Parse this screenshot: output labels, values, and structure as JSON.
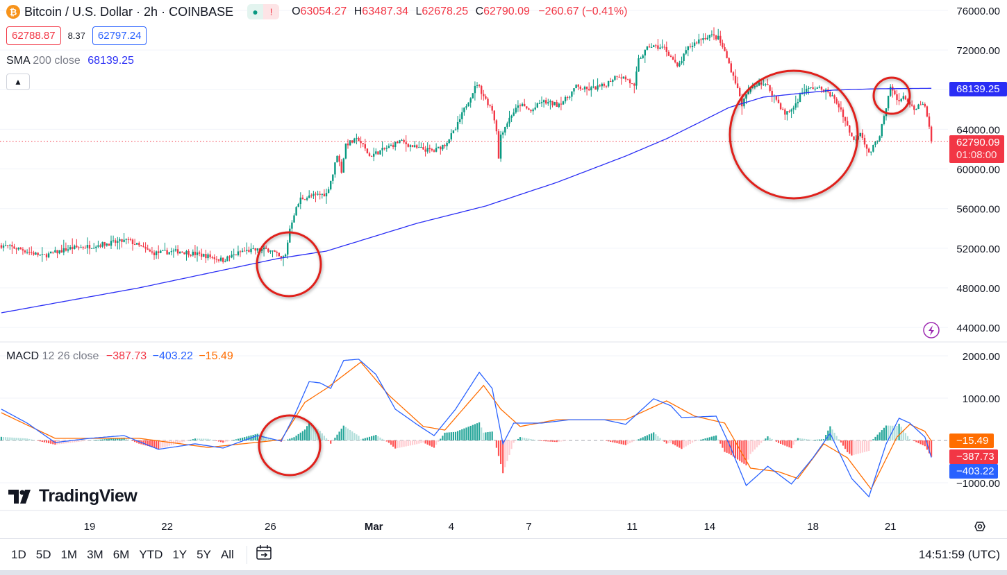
{
  "header": {
    "symbol_icon": "bitcoin-icon",
    "title": "Bitcoin / U.S. Dollar · 2h · COINBASE",
    "status_dot": "market-open-dot",
    "status_alert": "!",
    "o_label": "O",
    "o": "63054.27",
    "h_label": "H",
    "h": "63487.34",
    "l_label": "L",
    "l": "62678.25",
    "c_label": "C",
    "c": "62790.09",
    "change": "−260.67 (−0.41%)",
    "bid": "62788.87",
    "spread": "8.37",
    "ask": "62797.24"
  },
  "sma": {
    "name": "SMA",
    "params": "200 close",
    "value": "68139.25"
  },
  "macd": {
    "name": "MACD",
    "params": "12 26 close",
    "hist": "−387.73",
    "macd": "−403.22",
    "signal": "−15.49"
  },
  "price_badges": {
    "sma": "68139.25",
    "last": "62790.09",
    "countdown": "01:08:00"
  },
  "macd_badges": {
    "signal": "−15.49",
    "hist": "−387.73",
    "macd": "−403.22"
  },
  "logo": "TradingView",
  "toolbar": {
    "ranges": [
      "1D",
      "5D",
      "1M",
      "3M",
      "6M",
      "YTD",
      "1Y",
      "5Y",
      "All"
    ],
    "time": "14:51:59 (UTC)"
  },
  "colors": {
    "up": "#089981",
    "down": "#f23645",
    "sma": "#2a2ef5",
    "macd": "#2962ff",
    "signal": "#ff6d00",
    "annotation": "#e0201b"
  },
  "chart_data": [
    {
      "type": "candlestick",
      "interval": "2h",
      "ylim": [
        44000,
        76000
      ],
      "yticks": [
        44000,
        48000,
        52000,
        56000,
        60000,
        64000,
        68000,
        72000,
        76000
      ],
      "xticks": [
        {
          "label": "19",
          "date": "02-19"
        },
        {
          "label": "22",
          "date": "02-22"
        },
        {
          "label": "26",
          "date": "02-26"
        },
        {
          "label": "Mar",
          "date": "03-01"
        },
        {
          "label": "4",
          "date": "03-04"
        },
        {
          "label": "7",
          "date": "03-07"
        },
        {
          "label": "11",
          "date": "03-11"
        },
        {
          "label": "14",
          "date": "03-14"
        },
        {
          "label": "18",
          "date": "03-18"
        },
        {
          "label": "21",
          "date": "03-21"
        }
      ],
      "last_price": 62790.09,
      "close_path": [
        [
          "02-15 14:00",
          52300
        ],
        [
          "02-16 08:00",
          51900
        ],
        [
          "02-17 04:00",
          51200
        ],
        [
          "02-18 06:00",
          52000
        ],
        [
          "02-19 00:00",
          52200
        ],
        [
          "02-20 12:00",
          52800
        ],
        [
          "02-21 10:00",
          51500
        ],
        [
          "02-22 12:00",
          51700
        ],
        [
          "02-23 14:00",
          51200
        ],
        [
          "02-24 04:00",
          50800
        ],
        [
          "02-24 22:00",
          51700
        ],
        [
          "02-26 00:00",
          51900
        ],
        [
          "02-26 10:00",
          50900
        ],
        [
          "02-26 14:00",
          51300
        ],
        [
          "02-26 18:00",
          54000
        ],
        [
          "02-26 22:00",
          55500
        ],
        [
          "02-27 04:00",
          57000
        ],
        [
          "02-27 16:00",
          57300
        ],
        [
          "02-28 04:00",
          57500
        ],
        [
          "02-28 10:00",
          59500
        ],
        [
          "02-28 14:00",
          61500
        ],
        [
          "02-28 18:00",
          59800
        ],
        [
          "02-28 22:00",
          62500
        ],
        [
          "02-29 10:00",
          63000
        ],
        [
          "02-29 20:00",
          61300
        ],
        [
          "03-01 14:00",
          62200
        ],
        [
          "03-02 00:00",
          62800
        ],
        [
          "03-02 16:00",
          62100
        ],
        [
          "03-03 08:00",
          61800
        ],
        [
          "03-03 18:00",
          62500
        ],
        [
          "03-04 04:00",
          64000
        ],
        [
          "03-04 14:00",
          66500
        ],
        [
          "03-04 20:00",
          67800
        ],
        [
          "03-05 00:00",
          68600
        ],
        [
          "03-05 08:00",
          67000
        ],
        [
          "03-05 14:00",
          66000
        ],
        [
          "03-05 18:00",
          64000
        ],
        [
          "03-05 20:00",
          61000
        ],
        [
          "03-05 22:00",
          63500
        ],
        [
          "03-06 08:00",
          65500
        ],
        [
          "03-06 16:00",
          66500
        ],
        [
          "03-07 02:00",
          65800
        ],
        [
          "03-07 12:00",
          66800
        ],
        [
          "03-08 02:00",
          66500
        ],
        [
          "03-08 10:00",
          67000
        ],
        [
          "03-08 20:00",
          68300
        ],
        [
          "03-09 06:00",
          68000
        ],
        [
          "03-09 22:00",
          68400
        ],
        [
          "03-10 10:00",
          69500
        ],
        [
          "03-10 20:00",
          69000
        ],
        [
          "03-11 02:00",
          68200
        ],
        [
          "03-11 06:00",
          71000
        ],
        [
          "03-11 16:00",
          72400
        ],
        [
          "03-12 06:00",
          72200
        ],
        [
          "03-12 14:00",
          71000
        ],
        [
          "03-12 18:00",
          70200
        ],
        [
          "03-13 04:00",
          72200
        ],
        [
          "03-13 14:00",
          73000
        ],
        [
          "03-14 00:00",
          73500
        ],
        [
          "03-14 08:00",
          73200
        ],
        [
          "03-14 14:00",
          71800
        ],
        [
          "03-14 20:00",
          70000
        ],
        [
          "03-15 00:00",
          68800
        ],
        [
          "03-15 06:00",
          66500
        ],
        [
          "03-15 12:00",
          67800
        ],
        [
          "03-15 22:00",
          68800
        ],
        [
          "03-16 06:00",
          68300
        ],
        [
          "03-16 14:00",
          67000
        ],
        [
          "03-16 22:00",
          65500
        ],
        [
          "03-17 06:00",
          66200
        ],
        [
          "03-17 14:00",
          67800
        ],
        [
          "03-18 00:00",
          68200
        ],
        [
          "03-18 10:00",
          68000
        ],
        [
          "03-18 18:00",
          67300
        ],
        [
          "03-19 02:00",
          66000
        ],
        [
          "03-19 08:00",
          64300
        ],
        [
          "03-19 14:00",
          62800
        ],
        [
          "03-19 20:00",
          63800
        ],
        [
          "03-20 04:00",
          61500
        ],
        [
          "03-20 08:00",
          62200
        ],
        [
          "03-20 14:00",
          63500
        ],
        [
          "03-20 20:00",
          66000
        ],
        [
          "03-21 00:00",
          68300
        ],
        [
          "03-21 06:00",
          67000
        ],
        [
          "03-21 14:00",
          67200
        ],
        [
          "03-21 22:00",
          65800
        ],
        [
          "03-22 04:00",
          66600
        ],
        [
          "03-22 08:00",
          66200
        ],
        [
          "03-22 12:00",
          64200
        ],
        [
          "03-22 14:00",
          62790.09
        ]
      ],
      "sma_path": [
        [
          "02-15 14:00",
          45480
        ],
        [
          "02-20 22:00",
          48000
        ],
        [
          "02-26 06:00",
          50940
        ],
        [
          "02-28 04:00",
          51710
        ],
        [
          "03-02 16:00",
          54510
        ],
        [
          "03-05 08:00",
          56260
        ],
        [
          "03-08 02:00",
          58640
        ],
        [
          "03-10 18:00",
          61300
        ],
        [
          "03-12 08:00",
          63050
        ],
        [
          "03-13 10:00",
          64450
        ],
        [
          "03-14 18:00",
          66200
        ],
        [
          "03-16 02:00",
          67250
        ],
        [
          "03-18 18:00",
          67950
        ],
        [
          "03-20 10:00",
          68090
        ],
        [
          "03-22 14:00",
          68139.25
        ]
      ]
    },
    {
      "type": "line+bar",
      "name": "MACD",
      "ylim": [
        -1400,
        2300
      ],
      "yticks": [
        -1000,
        1000,
        2000
      ],
      "macd_path": [
        [
          "02-15 14:00",
          740
        ],
        [
          "02-16 14:00",
          410
        ],
        [
          "02-17 16:00",
          -50
        ],
        [
          "02-19 00:00",
          50
        ],
        [
          "02-20 08:00",
          115
        ],
        [
          "02-21 16:00",
          -210
        ],
        [
          "02-23 02:00",
          -80
        ],
        [
          "02-24 04:00",
          -180
        ],
        [
          "02-25 12:00",
          115
        ],
        [
          "02-26 10:00",
          -15
        ],
        [
          "02-26 22:00",
          575
        ],
        [
          "02-27 12:00",
          1390
        ],
        [
          "02-27 22:00",
          1360
        ],
        [
          "02-28 08:00",
          1230
        ],
        [
          "02-28 20:00",
          1890
        ],
        [
          "02-29 10:00",
          1920
        ],
        [
          "03-01 02:00",
          1560
        ],
        [
          "03-01 20:00",
          740
        ],
        [
          "03-02 16:00",
          380
        ],
        [
          "03-03 08:00",
          115
        ],
        [
          "03-04 04:00",
          740
        ],
        [
          "03-05 02:00",
          1610
        ],
        [
          "03-05 14:00",
          1230
        ],
        [
          "03-06 00:00",
          -80
        ],
        [
          "03-06 10:00",
          410
        ],
        [
          "03-07 12:00",
          410
        ],
        [
          "03-08 14:00",
          490
        ],
        [
          "03-09 22:00",
          490
        ],
        [
          "03-10 18:00",
          380
        ],
        [
          "03-11 20:00",
          985
        ],
        [
          "03-12 12:00",
          820
        ],
        [
          "03-12 22:00",
          540
        ],
        [
          "03-14 06:00",
          575
        ],
        [
          "03-14 18:00",
          -80
        ],
        [
          "03-15 10:00",
          -1065
        ],
        [
          "03-16 06:00",
          -610
        ],
        [
          "03-17 04:00",
          -1030
        ],
        [
          "03-18 00:00",
          -410
        ],
        [
          "03-18 16:00",
          165
        ],
        [
          "03-19 12:00",
          -900
        ],
        [
          "03-20 04:00",
          -1330
        ],
        [
          "03-20 20:00",
          -80
        ],
        [
          "03-21 08:00",
          525
        ],
        [
          "03-21 18:00",
          410
        ],
        [
          "03-22 08:00",
          80
        ],
        [
          "03-22 14:00",
          -403.22
        ]
      ],
      "signal_path": [
        [
          "02-15 14:00",
          655
        ],
        [
          "02-17 16:00",
          50
        ],
        [
          "02-20 22:00",
          50
        ],
        [
          "02-23 14:00",
          -165
        ],
        [
          "02-26 10:00",
          15
        ],
        [
          "02-27 08:00",
          900
        ],
        [
          "02-28 04:00",
          1230
        ],
        [
          "02-29 12:00",
          1850
        ],
        [
          "03-01 14:00",
          1070
        ],
        [
          "03-02 22:00",
          330
        ],
        [
          "03-03 18:00",
          245
        ],
        [
          "03-05 06:00",
          1300
        ],
        [
          "03-05 22:00",
          740
        ],
        [
          "03-06 16:00",
          330
        ],
        [
          "03-08 02:00",
          490
        ],
        [
          "03-10 18:00",
          490
        ],
        [
          "03-12 08:00",
          935
        ],
        [
          "03-13 10:00",
          575
        ],
        [
          "03-14 14:00",
          410
        ],
        [
          "03-15 14:00",
          -655
        ],
        [
          "03-16 16:00",
          -740
        ],
        [
          "03-17 10:00",
          -900
        ],
        [
          "03-18 10:00",
          -80
        ],
        [
          "03-19 08:00",
          -410
        ],
        [
          "03-20 06:00",
          -1150
        ],
        [
          "03-21 06:00",
          80
        ],
        [
          "03-21 18:00",
          380
        ],
        [
          "03-22 08:00",
          215
        ],
        [
          "03-22 14:00",
          -15.49
        ]
      ]
    }
  ]
}
